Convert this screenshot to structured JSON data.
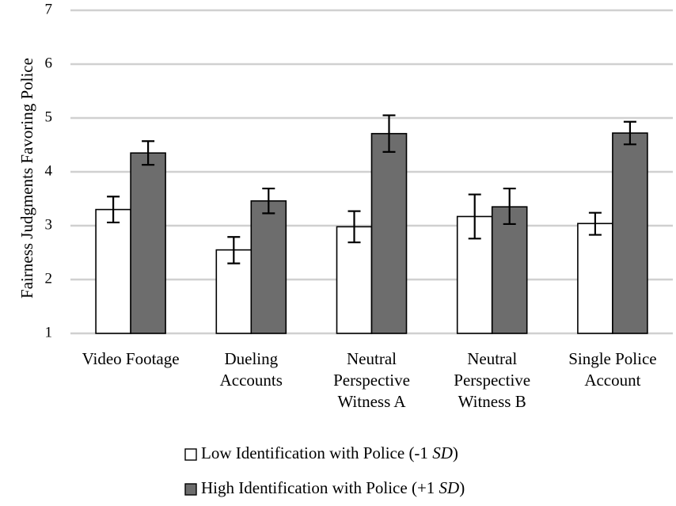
{
  "chart_data": {
    "type": "bar",
    "ylabel": "Fairness Judgments Favoring Police",
    "ylim": [
      1,
      7
    ],
    "yticks": [
      1,
      2,
      3,
      4,
      5,
      6,
      7
    ],
    "grid": true,
    "legend_placement": "bottom",
    "categories": [
      [
        "Video Footage"
      ],
      [
        "Dueling",
        "Accounts"
      ],
      [
        "Neutral",
        "Perspective",
        "Witness A"
      ],
      [
        "Neutral",
        "Perspective",
        "Witness B"
      ],
      [
        "Single Police",
        "Account"
      ]
    ],
    "series": [
      {
        "name_text": "Low Identification with Police (-1 ",
        "name_italic": "SD",
        "name_close": ")",
        "color": "#ffffff",
        "values": [
          3.3,
          2.55,
          2.98,
          3.17,
          3.04
        ],
        "error_low": [
          3.06,
          2.3,
          2.69,
          2.76,
          2.83
        ],
        "error_high": [
          3.54,
          2.79,
          3.27,
          3.58,
          3.24
        ]
      },
      {
        "name_text": "High Identification with Police (+1 ",
        "name_italic": "SD",
        "name_close": ")",
        "color": "#6d6d6d",
        "values": [
          4.35,
          3.46,
          4.71,
          3.35,
          4.72
        ],
        "error_low": [
          4.13,
          3.23,
          4.37,
          3.03,
          4.51
        ],
        "error_high": [
          4.57,
          3.69,
          5.05,
          3.69,
          4.93
        ]
      }
    ]
  },
  "colors": {
    "grid": "#d0d0d0",
    "bar_outline": "#000000",
    "text": "#000000"
  }
}
